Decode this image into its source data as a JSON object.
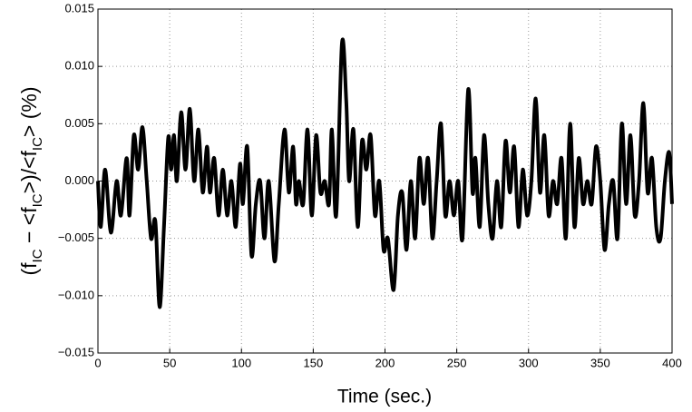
{
  "chart_data": {
    "type": "line",
    "xlabel": "Time (sec.)",
    "ylabel": [
      {
        "text": "(f"
      },
      {
        "text": "IC",
        "sub": true
      },
      {
        "text": " − <f"
      },
      {
        "text": "IC",
        "sub": true
      },
      {
        "text": ">)/<f"
      },
      {
        "text": "IC",
        "sub": true
      },
      {
        "text": "> (%)"
      }
    ],
    "xlim": [
      0,
      400
    ],
    "xticks": [
      0,
      50,
      100,
      150,
      200,
      250,
      300,
      350,
      400
    ],
    "ylim": [
      -0.015,
      0.015
    ],
    "yticks": [
      {
        "value": -0.015,
        "label": "−0.015"
      },
      {
        "value": -0.01,
        "label": "−0.010"
      },
      {
        "value": -0.005,
        "label": "−0.005"
      },
      {
        "value": 0,
        "label": "0.000"
      },
      {
        "value": 0.005,
        "label": "0.005"
      },
      {
        "value": 0.01,
        "label": "0.010"
      },
      {
        "value": 0.015,
        "label": "0.015"
      }
    ],
    "grid": true,
    "series": [
      {
        "color": "#000000",
        "x": [
          0,
          2,
          5,
          9,
          13,
          16,
          20,
          22,
          25,
          28,
          31,
          34,
          37,
          40,
          43,
          46,
          49,
          51,
          53,
          55,
          58,
          61,
          64,
          67,
          70,
          73,
          76,
          78,
          81,
          84,
          87,
          90,
          93,
          96,
          99,
          101,
          104,
          107,
          110,
          113,
          116,
          119,
          123,
          126,
          130,
          133,
          136,
          138,
          140,
          143,
          146,
          149,
          152,
          155,
          158,
          161,
          163,
          166,
          170,
          173,
          175,
          178,
          181,
          184,
          187,
          190,
          193,
          196,
          199,
          202,
          206,
          209,
          212,
          215,
          218,
          221,
          224,
          227,
          230,
          233,
          236,
          239,
          242,
          245,
          248,
          251,
          254,
          258,
          261,
          263,
          266,
          269,
          272,
          275,
          278,
          281,
          284,
          287,
          290,
          293,
          296,
          299,
          302,
          305,
          308,
          311,
          314,
          317,
          320,
          323,
          326,
          329,
          332,
          335,
          338,
          341,
          344,
          347,
          350,
          353,
          356,
          359,
          362,
          365,
          368,
          371,
          374,
          377,
          380,
          383,
          386,
          389,
          392,
          395,
          398,
          400
        ],
        "values": [
          0.0,
          -0.004,
          0.001,
          -0.0045,
          0.0,
          -0.003,
          0.002,
          -0.003,
          0.004,
          0.001,
          0.0047,
          0.0,
          -0.005,
          -0.0035,
          -0.011,
          -0.004,
          0.0038,
          0.001,
          0.004,
          0.0,
          0.006,
          0.001,
          0.0063,
          0.0,
          0.0045,
          -0.001,
          0.003,
          -0.001,
          0.002,
          -0.003,
          0.001,
          -0.003,
          0.0,
          -0.004,
          0.0015,
          -0.002,
          0.003,
          -0.0065,
          -0.002,
          0.0,
          -0.005,
          0.0,
          -0.007,
          -0.002,
          0.0045,
          -0.001,
          0.003,
          -0.002,
          0.0,
          -0.002,
          0.0045,
          -0.003,
          0.004,
          -0.001,
          0.0,
          -0.002,
          0.0045,
          -0.003,
          0.012,
          0.007,
          0.0,
          0.0045,
          -0.004,
          0.0035,
          0.001,
          0.004,
          -0.003,
          0.0,
          -0.006,
          -0.005,
          -0.0095,
          -0.003,
          -0.001,
          -0.006,
          0.0,
          -0.005,
          0.002,
          -0.002,
          0.002,
          -0.005,
          0.0,
          0.005,
          -0.003,
          0.0,
          -0.003,
          0.0,
          -0.005,
          0.008,
          -0.001,
          0.002,
          -0.004,
          0.004,
          -0.002,
          -0.005,
          0.0,
          -0.004,
          0.0035,
          -0.001,
          0.003,
          -0.004,
          0.001,
          -0.003,
          0.0,
          0.0072,
          -0.001,
          0.004,
          -0.003,
          0.0,
          -0.002,
          0.002,
          -0.005,
          0.005,
          -0.004,
          0.002,
          -0.002,
          0.0,
          -0.002,
          0.003,
          0.0,
          -0.006,
          -0.002,
          0.0,
          -0.005,
          0.005,
          -0.002,
          0.004,
          -0.003,
          0.0,
          0.0068,
          -0.001,
          0.002,
          -0.004,
          -0.005,
          0.0,
          0.0025,
          -0.002
        ]
      }
    ]
  }
}
